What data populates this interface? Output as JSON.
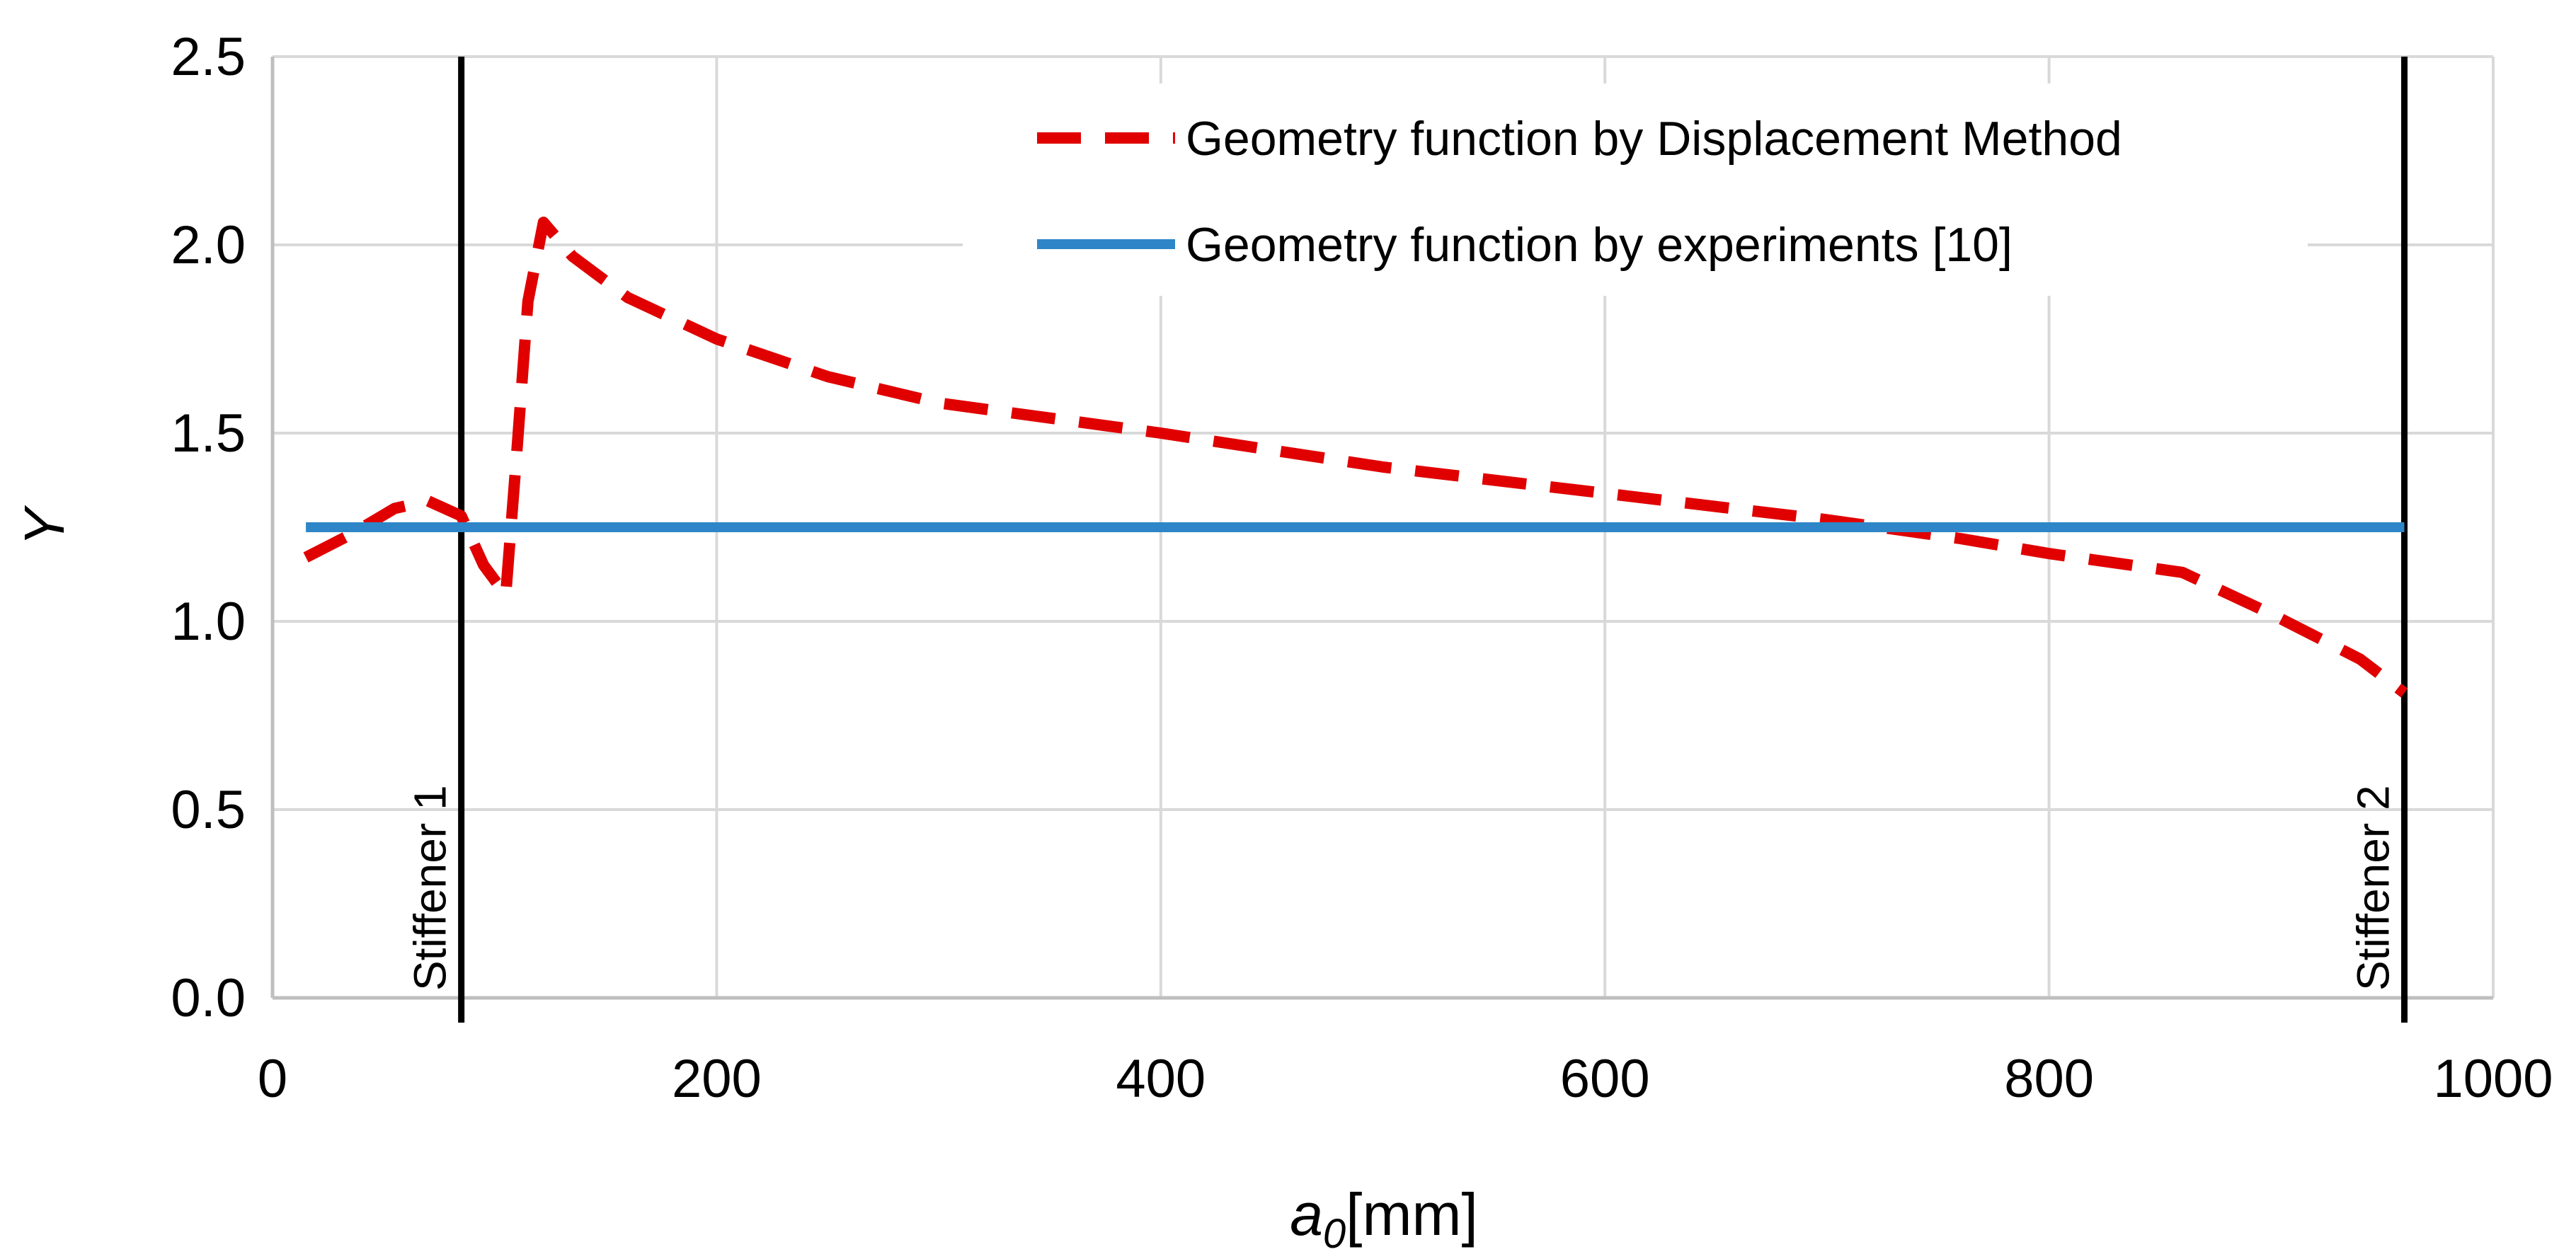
{
  "chart_data": {
    "type": "line",
    "title": "",
    "xlabel_main": "a",
    "xlabel_sub": "0",
    "xlabel_unit": "[mm]",
    "ylabel": "Y",
    "xlim": [
      0,
      1000
    ],
    "ylim": [
      0,
      2.5
    ],
    "xticks": [
      0,
      200,
      400,
      600,
      800,
      1000
    ],
    "xtick_labels": [
      "0",
      "200",
      "400",
      "600",
      "800",
      "1000"
    ],
    "yticks": [
      0,
      0.5,
      1.0,
      1.5,
      2.0,
      2.5
    ],
    "ytick_labels": [
      "0.0",
      "0.5",
      "1.0",
      "1.5",
      "2.0",
      "2.5"
    ],
    "grid": true,
    "legend_position": "top-right",
    "series": [
      {
        "name": "Geometry function by Displacement Method",
        "color": "#e00000",
        "style": "dashed",
        "x": [
          15,
          35,
          55,
          70,
          85,
          95,
          105,
          110,
          115,
          122,
          135,
          160,
          200,
          250,
          300,
          400,
          500,
          600,
          700,
          760,
          800,
          860,
          900,
          940,
          960
        ],
        "y": [
          1.17,
          1.23,
          1.3,
          1.32,
          1.28,
          1.15,
          1.07,
          1.45,
          1.85,
          2.06,
          1.97,
          1.86,
          1.75,
          1.65,
          1.58,
          1.5,
          1.41,
          1.34,
          1.27,
          1.22,
          1.18,
          1.13,
          1.02,
          0.9,
          0.81
        ]
      },
      {
        "name": "Geometry function by experiments [10]",
        "color": "#2e86c8",
        "style": "solid",
        "x": [
          15,
          960
        ],
        "y": [
          1.25,
          1.25
        ]
      }
    ],
    "vertical_lines": [
      {
        "x": 85,
        "label": "Stiffener 1",
        "color": "#000000"
      },
      {
        "x": 960,
        "label": "Stiffener 2",
        "color": "#000000"
      }
    ]
  }
}
